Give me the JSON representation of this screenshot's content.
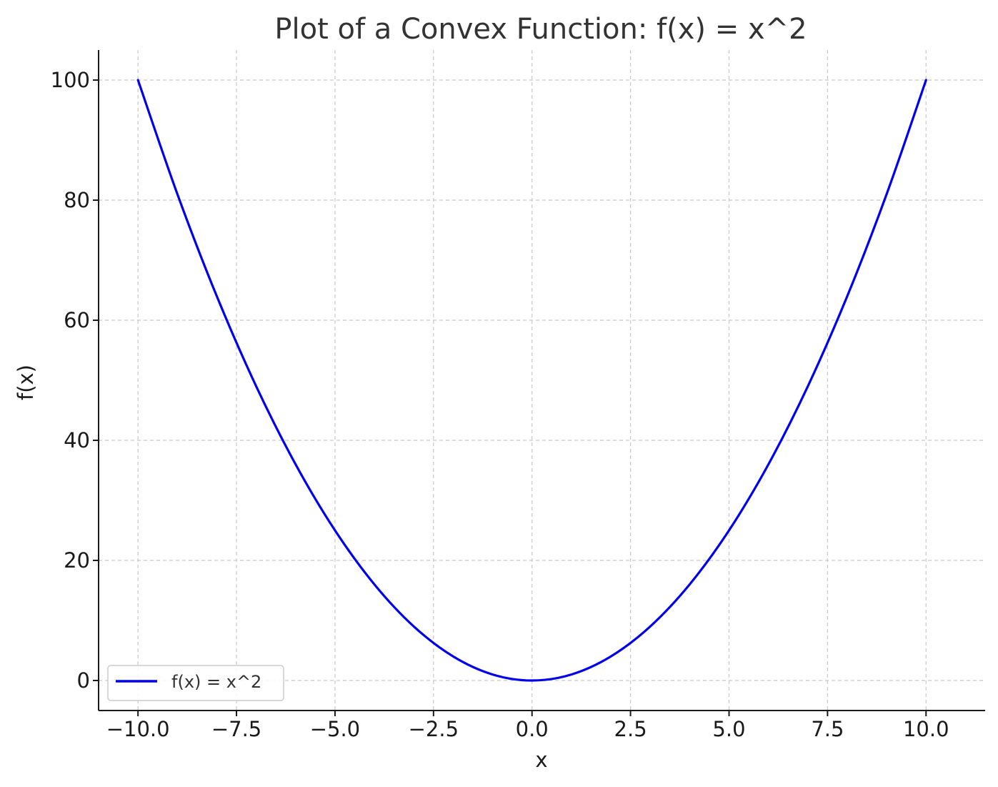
{
  "chart_data": {
    "type": "line",
    "title": "Plot of a Convex Function: f(x) = x^2",
    "xlabel": "x",
    "ylabel": "f(x)",
    "xlim": [
      -11.0,
      11.5
    ],
    "ylim": [
      -5,
      105
    ],
    "grid": true,
    "legend_placement": "lower-left",
    "x_ticks": [
      -10.0,
      -7.5,
      -5.0,
      -2.5,
      0.0,
      2.5,
      5.0,
      7.5,
      10.0
    ],
    "x_tick_labels": [
      "−10.0",
      "−7.5",
      "−5.0",
      "−2.5",
      "0.0",
      "2.5",
      "5.0",
      "7.5",
      "10.0"
    ],
    "y_ticks": [
      0,
      20,
      40,
      60,
      80,
      100
    ],
    "y_tick_labels": [
      "0",
      "20",
      "40",
      "60",
      "80",
      "100"
    ],
    "series": [
      {
        "name": "f(x) = x^2",
        "color": "#0000ee",
        "x": [
          -10,
          -9,
          -8,
          -7,
          -6,
          -5,
          -4,
          -3,
          -2,
          -1,
          0,
          1,
          2,
          3,
          4,
          5,
          6,
          7,
          8,
          9,
          10
        ],
        "y": [
          100,
          81,
          64,
          49,
          36,
          25,
          16,
          9,
          4,
          1,
          0,
          1,
          4,
          9,
          16,
          25,
          36,
          49,
          64,
          81,
          100
        ]
      }
    ]
  }
}
